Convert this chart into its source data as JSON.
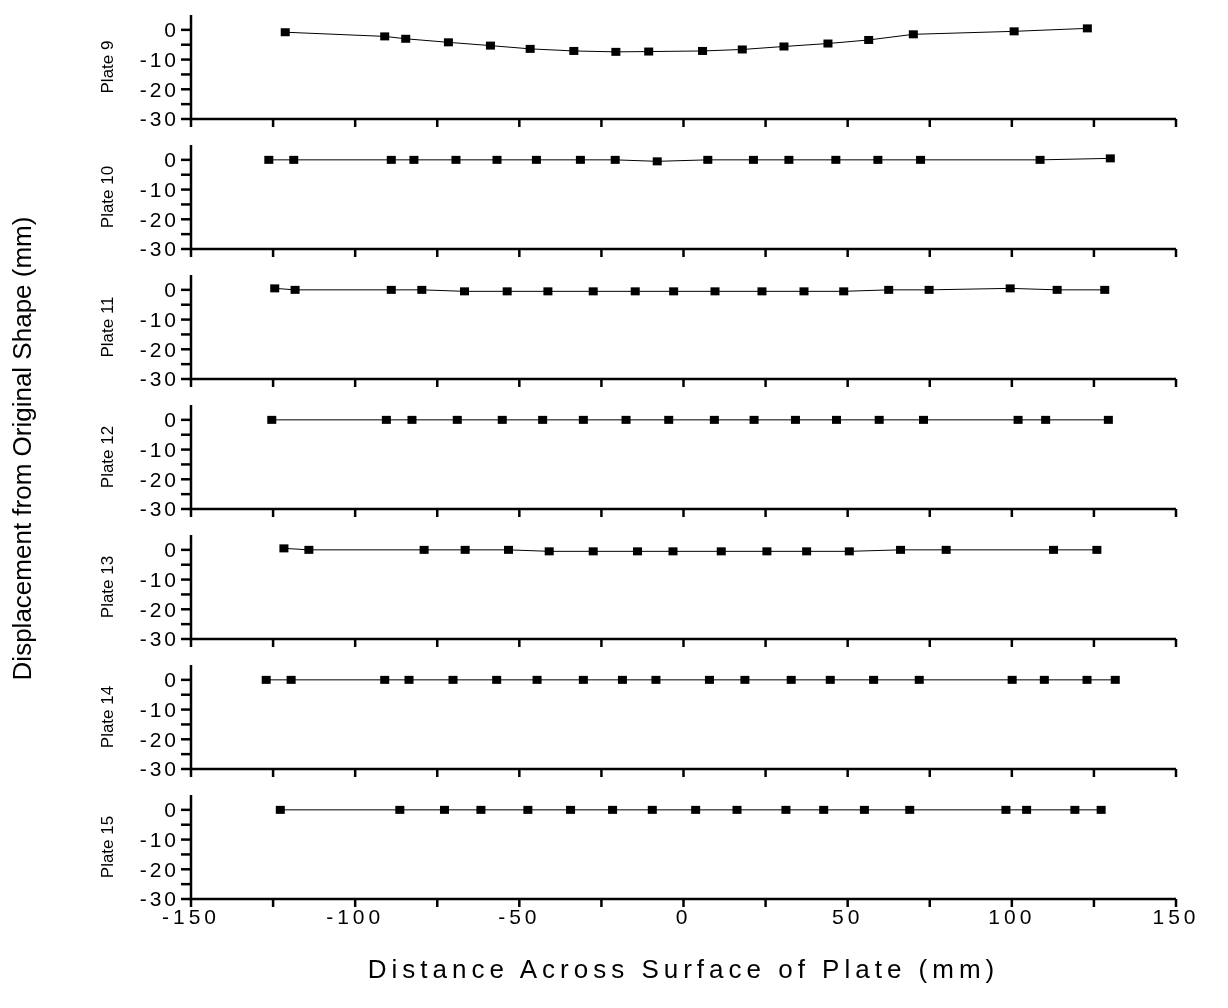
{
  "chart_data": [
    {
      "type": "line",
      "ylabel": "Plate 9",
      "annotations": [
        "Displacement from Original Shape (mm)"
      ],
      "tick_labels": "y",
      "marker": "square",
      "line_style": "solid",
      "grid": false,
      "legend": false,
      "xlim": [
        -150,
        150
      ],
      "xticks": [
        -150,
        {
          "value": -125,
          "label": null
        },
        -100,
        {
          "value": -75,
          "label": null
        },
        -50,
        {
          "value": -25,
          "label": null
        },
        0,
        {
          "value": 25,
          "label": null
        },
        50,
        {
          "value": 75,
          "label": null
        },
        100,
        {
          "value": 125,
          "label": null
        },
        150
      ],
      "ylim": [
        -30,
        5
      ],
      "yticks": [
        0,
        {
          "value": -5,
          "label": null
        },
        -10,
        {
          "value": -15,
          "label": null
        },
        -20,
        {
          "value": -25,
          "label": null
        },
        -30
      ],
      "series": [
        {
          "color": "#000000",
          "x": [
            -121.3,
            -91,
            -84.6,
            -71.6,
            -58.8,
            -46.7,
            -33.4,
            -20.6,
            -10.6,
            5.8,
            17.9,
            30.6,
            44,
            56.4,
            70,
            100.7,
            123
          ],
          "values": [
            -0.8,
            -2.2,
            -3,
            -4.2,
            -5.3,
            -6.4,
            -7.1,
            -7.4,
            -7.3,
            -7.1,
            -6.6,
            -5.6,
            -4.6,
            -3.4,
            -1.5,
            -0.5,
            0.5
          ]
        }
      ]
    },
    {
      "type": "line",
      "ylabel": "Plate 10",
      "tick_labels": "y",
      "marker": "square",
      "line_style": "solid",
      "grid": false,
      "legend": false,
      "xlim": [
        -150,
        150
      ],
      "xticks": [
        -150,
        {
          "value": -125,
          "label": null
        },
        -100,
        {
          "value": -75,
          "label": null
        },
        -50,
        {
          "value": -25,
          "label": null
        },
        0,
        {
          "value": 25,
          "label": null
        },
        50,
        {
          "value": 75,
          "label": null
        },
        100,
        {
          "value": 125,
          "label": null
        },
        150
      ],
      "ylim": [
        -30,
        5
      ],
      "yticks": [
        0,
        {
          "value": -5,
          "label": null
        },
        -10,
        {
          "value": -15,
          "label": null
        },
        -20,
        {
          "value": -25,
          "label": null
        },
        -30
      ],
      "series": [
        {
          "color": "#000000",
          "x": [
            -126.3,
            -118.7,
            -89,
            -82.1,
            -69.3,
            -56.8,
            -44.8,
            -31.4,
            -20.8,
            -8,
            7.4,
            21.3,
            32.1,
            46.4,
            59.2,
            72.2,
            108.6,
            130
          ],
          "values": [
            0,
            0,
            0,
            0,
            0,
            0,
            0,
            0,
            0,
            -0.5,
            0,
            0,
            0,
            0,
            0,
            0,
            0,
            0.5
          ]
        }
      ]
    },
    {
      "type": "line",
      "ylabel": "Plate 11",
      "tick_labels": "y",
      "marker": "square",
      "line_style": "solid",
      "grid": false,
      "legend": false,
      "xlim": [
        -150,
        150
      ],
      "xticks": [
        -150,
        {
          "value": -125,
          "label": null
        },
        -100,
        {
          "value": -75,
          "label": null
        },
        -50,
        {
          "value": -25,
          "label": null
        },
        0,
        {
          "value": 25,
          "label": null
        },
        50,
        {
          "value": 75,
          "label": null
        },
        100,
        {
          "value": 125,
          "label": null
        },
        150
      ],
      "ylim": [
        -30,
        5
      ],
      "yticks": [
        0,
        {
          "value": -5,
          "label": null
        },
        -10,
        {
          "value": -15,
          "label": null
        },
        -20,
        {
          "value": -25,
          "label": null
        },
        -30
      ],
      "series": [
        {
          "color": "#000000",
          "x": [
            -124.5,
            -118.3,
            -89,
            -79.7,
            -66.7,
            -53.7,
            -41.3,
            -27.5,
            -14.7,
            -3,
            9.6,
            23.9,
            36.7,
            48.8,
            62.5,
            74.8,
            99.5,
            113.8,
            128.3
          ],
          "values": [
            0.5,
            0,
            0,
            0,
            -0.5,
            -0.5,
            -0.5,
            -0.5,
            -0.5,
            -0.5,
            -0.5,
            -0.5,
            -0.5,
            -0.5,
            0,
            0,
            0.5,
            0,
            0
          ]
        }
      ]
    },
    {
      "type": "line",
      "ylabel": "Plate 12",
      "tick_labels": "y",
      "marker": "square",
      "line_style": "solid",
      "grid": false,
      "legend": false,
      "xlim": [
        -150,
        150
      ],
      "xticks": [
        -150,
        {
          "value": -125,
          "label": null
        },
        -100,
        {
          "value": -75,
          "label": null
        },
        -50,
        {
          "value": -25,
          "label": null
        },
        0,
        {
          "value": 25,
          "label": null
        },
        50,
        {
          "value": 75,
          "label": null
        },
        100,
        {
          "value": 125,
          "label": null
        },
        150
      ],
      "ylim": [
        -30,
        5
      ],
      "yticks": [
        0,
        {
          "value": -5,
          "label": null
        },
        -10,
        {
          "value": -15,
          "label": null
        },
        -20,
        {
          "value": -25,
          "label": null
        },
        -30
      ],
      "series": [
        {
          "color": "#000000",
          "x": [
            -125.4,
            -90.5,
            -82.7,
            -68.9,
            -55.2,
            -42.9,
            -30.5,
            -17.5,
            -4.5,
            9.4,
            21.5,
            34.1,
            46.6,
            59.6,
            73.1,
            101.9,
            110.3,
            129.4
          ],
          "values": [
            0,
            0,
            0,
            0,
            0,
            0,
            0,
            0,
            0,
            0,
            0,
            0,
            0,
            0,
            0,
            0,
            0,
            0
          ]
        }
      ]
    },
    {
      "type": "line",
      "ylabel": "Plate 13",
      "tick_labels": "y",
      "marker": "square",
      "line_style": "solid",
      "grid": false,
      "legend": false,
      "xlim": [
        -150,
        150
      ],
      "xticks": [
        -150,
        {
          "value": -125,
          "label": null
        },
        -100,
        {
          "value": -75,
          "label": null
        },
        -50,
        {
          "value": -25,
          "label": null
        },
        0,
        {
          "value": 25,
          "label": null
        },
        50,
        {
          "value": 75,
          "label": null
        },
        100,
        {
          "value": 125,
          "label": null
        },
        150
      ],
      "ylim": [
        -30,
        5
      ],
      "yticks": [
        0,
        {
          "value": -5,
          "label": null
        },
        -10,
        {
          "value": -15,
          "label": null
        },
        -20,
        {
          "value": -25,
          "label": null
        },
        -30
      ],
      "series": [
        {
          "color": "#000000",
          "x": [
            -121.7,
            -114.1,
            -79,
            -66.5,
            -53.3,
            -40.9,
            -27.5,
            -14,
            -3.2,
            11.5,
            25.4,
            37.5,
            50.5,
            66.1,
            80,
            112.7,
            125.9
          ],
          "values": [
            0.5,
            0,
            0,
            0,
            0,
            -0.5,
            -0.5,
            -0.5,
            -0.5,
            -0.5,
            -0.5,
            -0.5,
            -0.5,
            0,
            0,
            0,
            0
          ]
        }
      ]
    },
    {
      "type": "line",
      "ylabel": "Plate 14",
      "tick_labels": "y",
      "marker": "square",
      "line_style": "solid",
      "grid": false,
      "legend": false,
      "xlim": [
        -150,
        150
      ],
      "xticks": [
        -150,
        {
          "value": -125,
          "label": null
        },
        -100,
        {
          "value": -75,
          "label": null
        },
        -50,
        {
          "value": -25,
          "label": null
        },
        0,
        {
          "value": 25,
          "label": null
        },
        50,
        {
          "value": 75,
          "label": null
        },
        100,
        {
          "value": 125,
          "label": null
        },
        150
      ],
      "ylim": [
        -30,
        5
      ],
      "yticks": [
        0,
        {
          "value": -5,
          "label": null
        },
        -10,
        {
          "value": -15,
          "label": null
        },
        -20,
        {
          "value": -25,
          "label": null
        },
        -30
      ],
      "series": [
        {
          "color": "#000000",
          "x": [
            -127.1,
            -119.5,
            -91,
            -83.6,
            -70.2,
            -56.9,
            -44.6,
            -30.5,
            -18.6,
            -8.4,
            7.9,
            18.7,
            32.8,
            44.7,
            57.9,
            71.8,
            100.1,
            109.9,
            122.9,
            131.5
          ],
          "values": [
            0,
            0,
            0,
            0,
            0,
            0,
            0,
            0,
            0,
            0,
            0,
            0,
            0,
            0,
            0,
            0,
            0,
            0,
            0,
            0
          ]
        }
      ]
    },
    {
      "type": "line",
      "ylabel": "Plate 15",
      "xlabel": "Distance Across Surface of Plate (mm)",
      "marker": "square",
      "line_style": "solid",
      "grid": false,
      "legend": false,
      "xlim": [
        -150,
        150
      ],
      "xticks": [
        -150,
        {
          "value": -125,
          "label": null
        },
        -100,
        {
          "value": -75,
          "label": null
        },
        -50,
        {
          "value": -25,
          "label": null
        },
        0,
        {
          "value": 25,
          "label": null
        },
        50,
        {
          "value": 75,
          "label": null
        },
        100,
        {
          "value": 125,
          "label": null
        },
        150
      ],
      "ylim": [
        -30,
        5
      ],
      "yticks": [
        0,
        {
          "value": -5,
          "label": null
        },
        -10,
        {
          "value": -15,
          "label": null
        },
        -20,
        {
          "value": -25,
          "label": null
        },
        -30
      ],
      "series": [
        {
          "color": "#000000",
          "x": [
            -122.8,
            -86.4,
            -72.8,
            -61.7,
            -47.4,
            -34.4,
            -21.6,
            -9.5,
            3.7,
            16.3,
            31.2,
            42.7,
            55.1,
            68.9,
            98.2,
            104.5,
            119.2,
            127.2
          ],
          "values": [
            0,
            0,
            0,
            0,
            0,
            0,
            0,
            0,
            0,
            0,
            0,
            0,
            0,
            0,
            0,
            0,
            0,
            0
          ]
        }
      ]
    }
  ]
}
